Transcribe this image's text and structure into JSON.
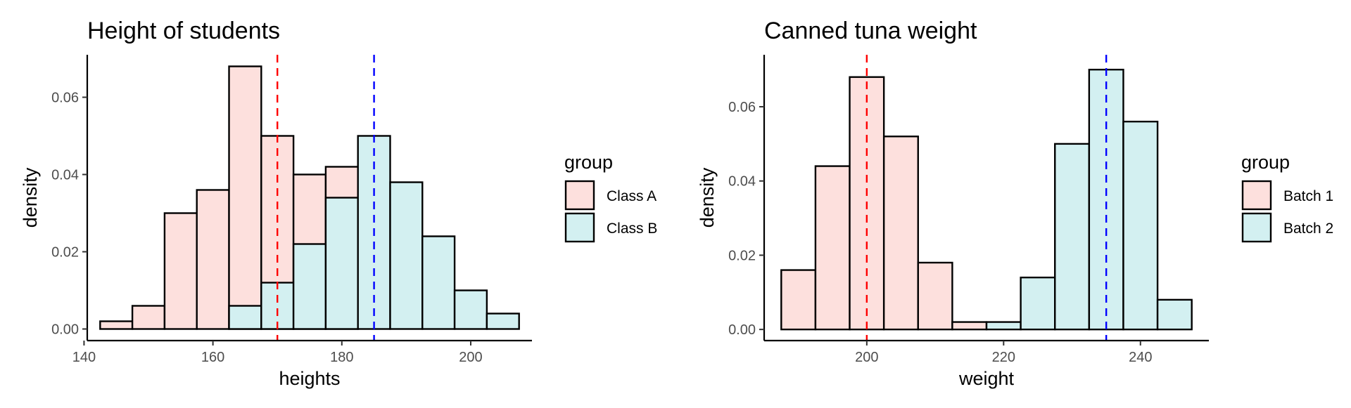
{
  "chart_data": [
    {
      "type": "histogram",
      "title": "Height of students",
      "xlabel": "heights",
      "ylabel": "density",
      "xlim": [
        140.5,
        209.5
      ],
      "ylim": [
        -0.003,
        0.071
      ],
      "xticks": [
        140,
        160,
        180,
        200
      ],
      "yticks": [
        0.0,
        0.02,
        0.04,
        0.06
      ],
      "ytick_labels": [
        "0.00",
        "0.02",
        "0.04",
        "0.06"
      ],
      "bin_width": 5,
      "grid": false,
      "legend": {
        "title": "group",
        "position": "right"
      },
      "series": [
        {
          "name": "Class A",
          "color": "#fde0dd",
          "bins": [
            [
              142.5,
              147.5,
              0.002
            ],
            [
              147.5,
              152.5,
              0.006
            ],
            [
              152.5,
              157.5,
              0.03
            ],
            [
              157.5,
              162.5,
              0.036
            ],
            [
              162.5,
              167.5,
              0.068
            ],
            [
              167.5,
              172.5,
              0.05
            ],
            [
              172.5,
              177.5,
              0.04
            ],
            [
              177.5,
              182.5,
              0.042
            ]
          ]
        },
        {
          "name": "Class B",
          "color": "#d3f0f1",
          "bins": [
            [
              162.5,
              167.5,
              0.006
            ],
            [
              167.5,
              172.5,
              0.012
            ],
            [
              172.5,
              177.5,
              0.022
            ],
            [
              177.5,
              182.5,
              0.034
            ],
            [
              182.5,
              187.5,
              0.05
            ],
            [
              187.5,
              192.5,
              0.038
            ],
            [
              192.5,
              197.5,
              0.024
            ],
            [
              197.5,
              202.5,
              0.01
            ],
            [
              202.5,
              207.5,
              0.004
            ]
          ]
        }
      ],
      "vlines": [
        {
          "x": 170,
          "color": "#ff0000"
        },
        {
          "x": 185,
          "color": "#0000ff"
        }
      ]
    },
    {
      "type": "histogram",
      "title": "Canned tuna weight",
      "xlabel": "weight",
      "ylabel": "density",
      "xlim": [
        185,
        250
      ],
      "ylim": [
        -0.003,
        0.074
      ],
      "xticks": [
        200,
        220,
        240
      ],
      "yticks": [
        0.0,
        0.02,
        0.04,
        0.06
      ],
      "ytick_labels": [
        "0.00",
        "0.02",
        "0.04",
        "0.06"
      ],
      "bin_width": 5,
      "grid": false,
      "legend": {
        "title": "group",
        "position": "right"
      },
      "series": [
        {
          "name": "Batch 1",
          "color": "#fde0dd",
          "bins": [
            [
              187.5,
              192.5,
              0.016
            ],
            [
              192.5,
              197.5,
              0.044
            ],
            [
              197.5,
              202.5,
              0.068
            ],
            [
              202.5,
              207.5,
              0.052
            ],
            [
              207.5,
              212.5,
              0.018
            ],
            [
              212.5,
              217.5,
              0.002
            ]
          ]
        },
        {
          "name": "Batch 2",
          "color": "#d3f0f1",
          "bins": [
            [
              217.5,
              222.5,
              0.002
            ],
            [
              222.5,
              227.5,
              0.014
            ],
            [
              227.5,
              232.5,
              0.05
            ],
            [
              232.5,
              237.5,
              0.07
            ],
            [
              237.5,
              242.5,
              0.056
            ],
            [
              242.5,
              247.5,
              0.008
            ]
          ]
        }
      ],
      "vlines": [
        {
          "x": 200,
          "color": "#ff0000"
        },
        {
          "x": 235,
          "color": "#0000ff"
        }
      ]
    }
  ]
}
